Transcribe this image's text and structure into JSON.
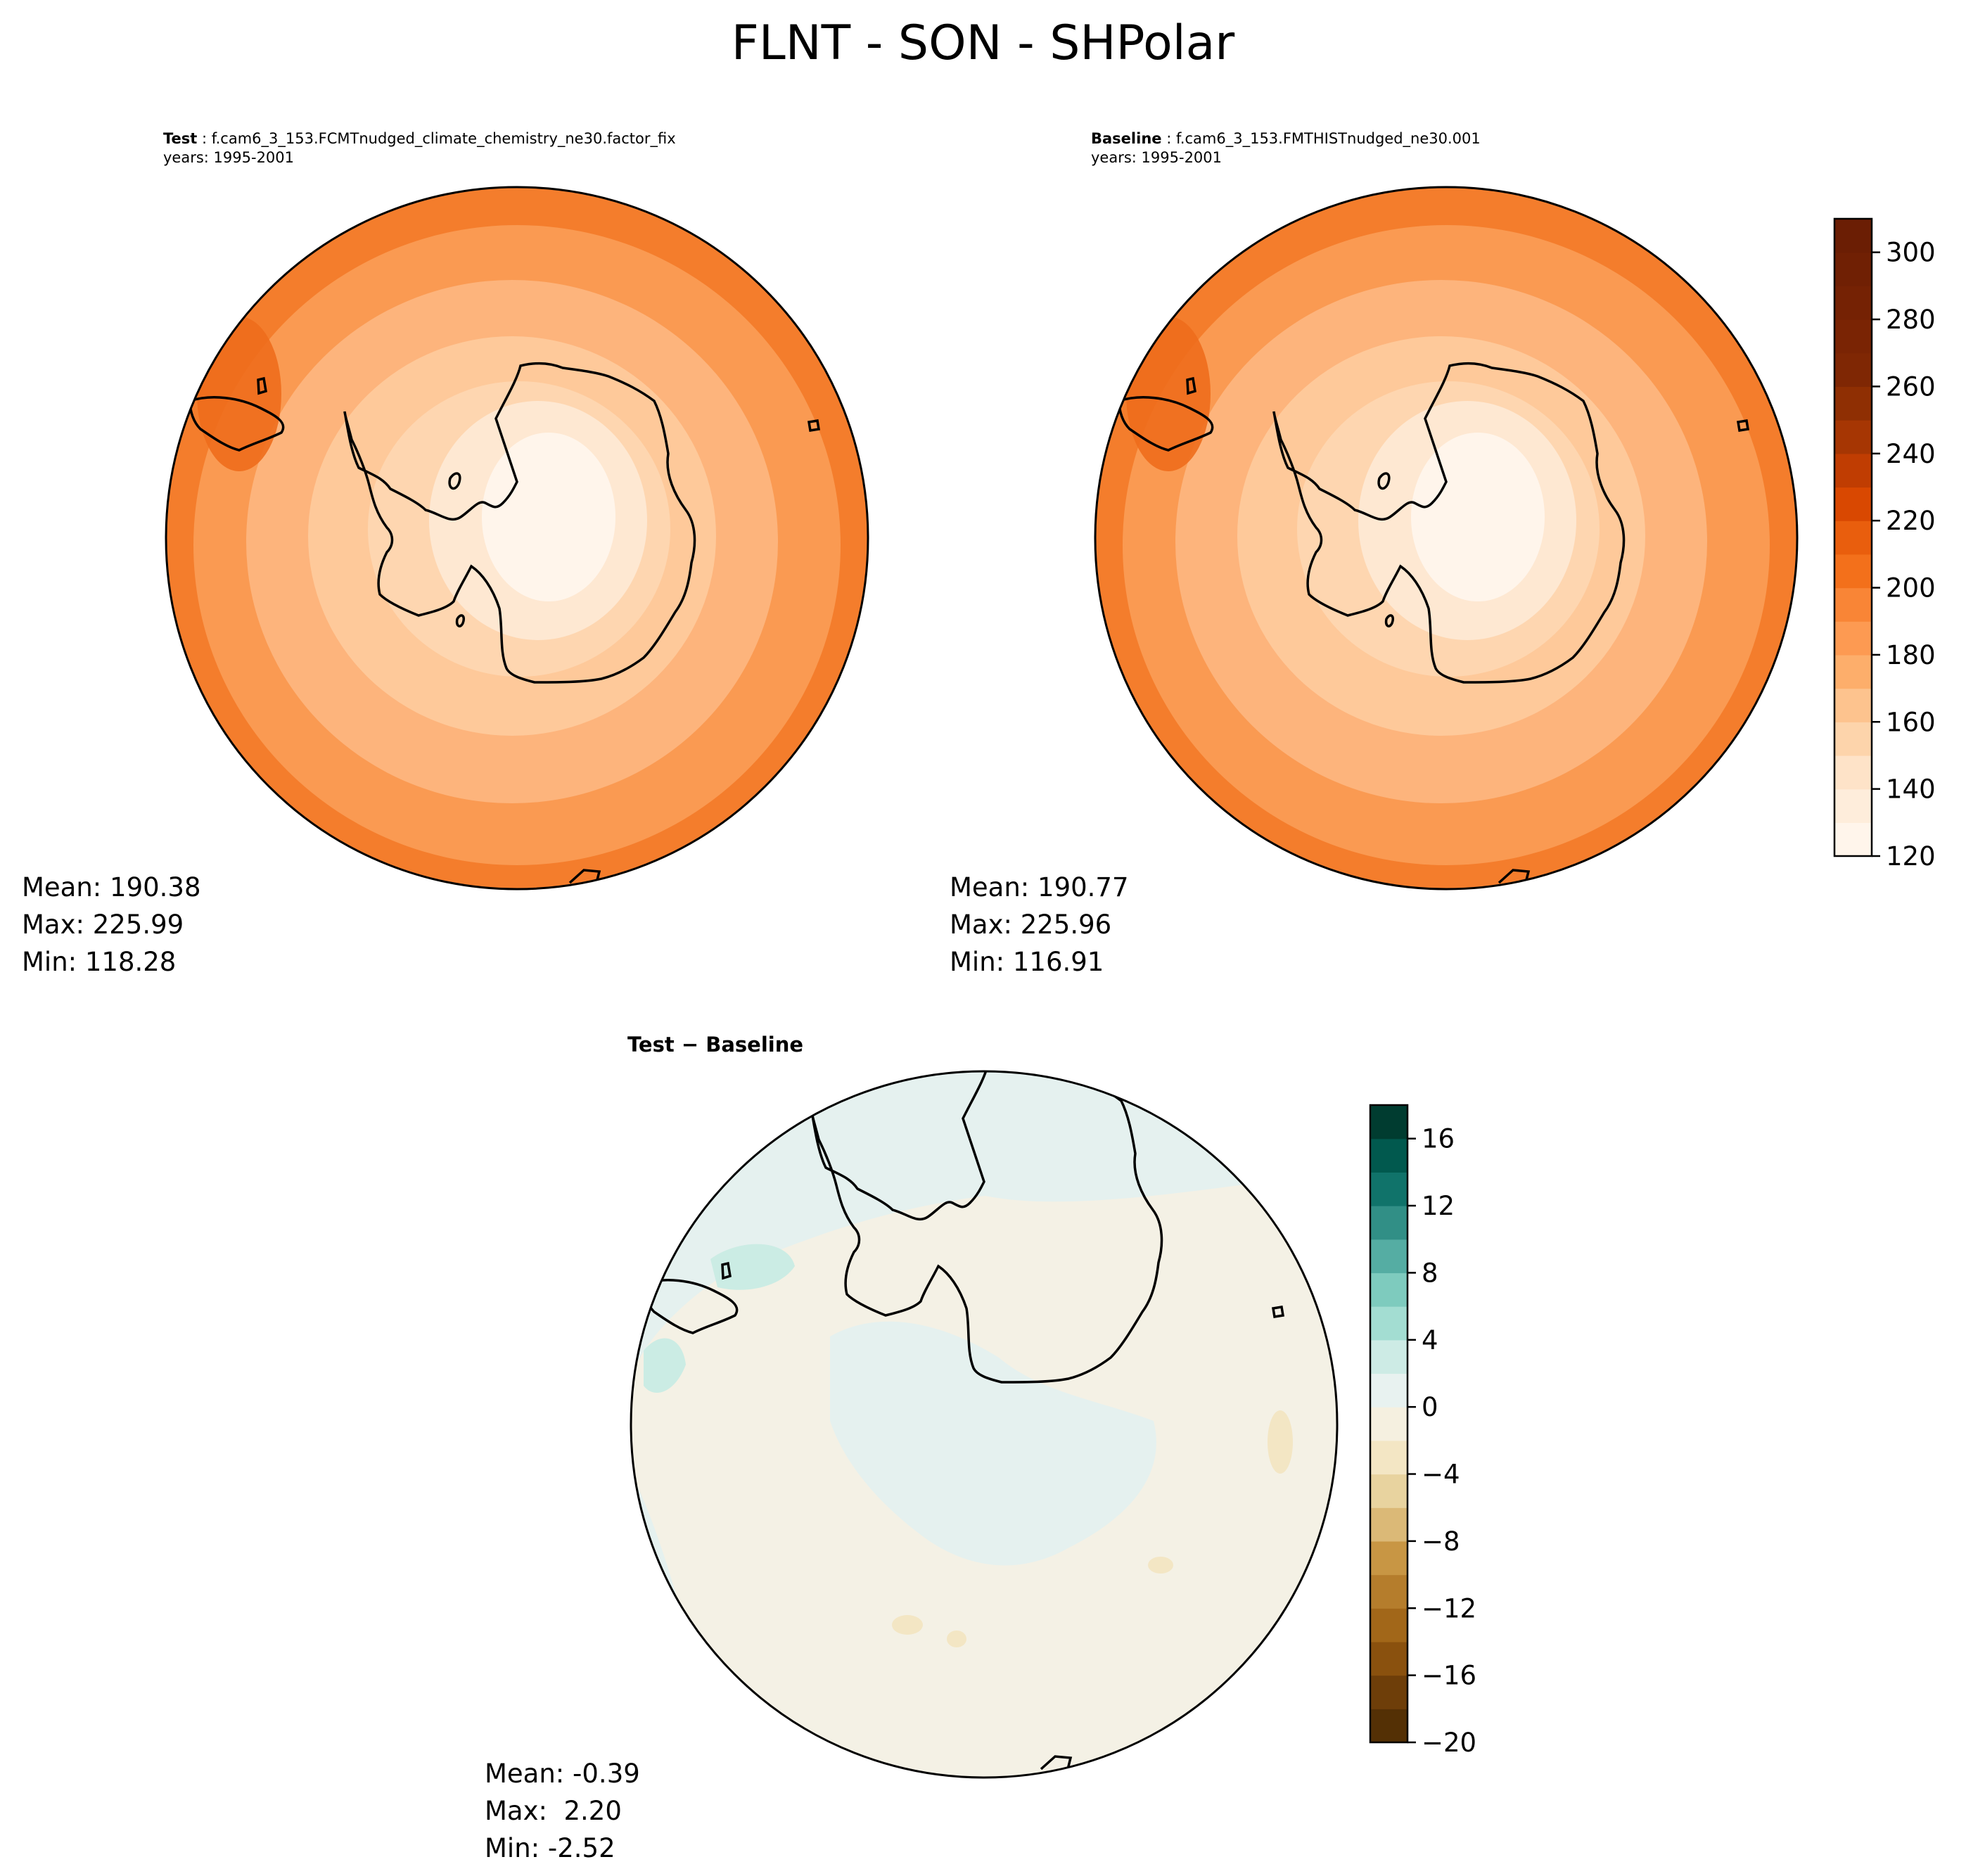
{
  "figure": {
    "title": "FLNT - SON - SHPolar"
  },
  "panels": {
    "test": {
      "label": "Test",
      "case": "f.cam6_3_153.FCMTnudged_climate_chemistry_ne30.factor_fix",
      "years": "years: 1995-2001",
      "stats": {
        "mean": "Mean: 190.38",
        "max": "Max: 225.99",
        "min": "Min: 118.28"
      }
    },
    "baseline": {
      "label": "Baseline",
      "case": "f.cam6_3_153.FMTHISTnudged_ne30.001",
      "years": "years: 1995-2001",
      "stats": {
        "mean": "Mean: 190.77",
        "max": "Max: 225.96",
        "min": "Min: 116.91"
      }
    },
    "diff": {
      "title": "Test − Baseline",
      "stats": {
        "mean": "Mean: -0.39",
        "max": "Max:  2.20",
        "min": "Min: -2.52"
      }
    }
  },
  "colorbars": {
    "main": {
      "ticks": [
        "120",
        "140",
        "160",
        "180",
        "200",
        "220",
        "240",
        "260",
        "280",
        "300"
      ],
      "levels": [
        120,
        130,
        140,
        150,
        160,
        170,
        180,
        190,
        200,
        210,
        220,
        230,
        240,
        250,
        260,
        270,
        280,
        290,
        300,
        310
      ],
      "colors": [
        "#fff5eb",
        "#feeddb",
        "#fee3c8",
        "#fdd4ab",
        "#fdc38e",
        "#fdae6b",
        "#fd9a52",
        "#f98536",
        "#f3701b",
        "#e95e0d",
        "#d94801",
        "#c03d02",
        "#a63603",
        "#8f2f03",
        "#7f2704",
        "#7a2404",
        "#752204",
        "#702004",
        "#6b1e04"
      ]
    },
    "diff": {
      "ticks": [
        "−20",
        "−16",
        "−12",
        "−8",
        "−4",
        "0",
        "4",
        "8",
        "12",
        "16"
      ],
      "levels": [
        -20,
        -18,
        -16,
        -14,
        -12,
        -10,
        -8,
        -6,
        -4,
        -2,
        0,
        2,
        4,
        6,
        8,
        10,
        12,
        14,
        16,
        18
      ],
      "colors": [
        "#543005",
        "#6e3e09",
        "#8a510e",
        "#a26719",
        "#b57d2c",
        "#c89644",
        "#dbb977",
        "#e8d39f",
        "#f3e6c4",
        "#f5f0e0",
        "#e8f2f0",
        "#cdebe5",
        "#a3ddd2",
        "#7ecbbe",
        "#55ada3",
        "#318f86",
        "#10736a",
        "#01594e",
        "#003c30"
      ]
    }
  },
  "colors": {
    "outer_ring": "#f47d2c",
    "mid_ring": "#fa9a52",
    "inner_ring": "#fdb47c",
    "ice_ring": "#fed6b0",
    "ice_core": "#fff5eb",
    "diff_bg": "#f4f1e5",
    "diff_teal": "#e5f1ef",
    "diff_teal_strong": "#cbece4",
    "diff_tan": "#f3e6c4"
  }
}
